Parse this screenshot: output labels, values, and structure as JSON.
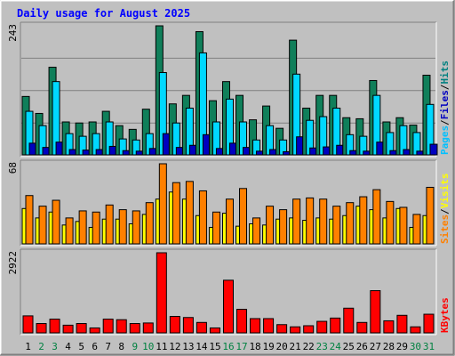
{
  "colors": {
    "frame_bg": "#c0c0c0",
    "panel_bg": "#c0c0c0",
    "title": "#0000ff",
    "hits": "#107f5a",
    "files": "#00d8ff",
    "pages": "#00c0ff",
    "visits": "#ffff00",
    "sites": "#ff8000",
    "kbytes": "#ff0000",
    "weekend_label": "#008040",
    "weekday_label": "#000000",
    "gridline": "#808080"
  },
  "chart_data": {
    "type": "bar",
    "title": "Daily usage for August 2025",
    "categories": [
      "1",
      "2",
      "3",
      "4",
      "5",
      "6",
      "7",
      "8",
      "9",
      "10",
      "11",
      "12",
      "13",
      "14",
      "15",
      "16",
      "17",
      "18",
      "19",
      "20",
      "21",
      "22",
      "23",
      "24",
      "25",
      "26",
      "27",
      "28",
      "29",
      "30",
      "31"
    ],
    "weekend_days": [
      "2",
      "3",
      "9",
      "10",
      "16",
      "17",
      "23",
      "24",
      "30",
      "31"
    ],
    "panels": [
      {
        "name": "hits_files_pages",
        "ymax_label": "243",
        "ylim": [
          0,
          243
        ],
        "gridlines": [
          60,
          121,
          182
        ],
        "legend": [
          {
            "label": "Hits",
            "color": "#008080"
          },
          {
            "label": "Files",
            "color": "#0000c0"
          },
          {
            "label": "Pages",
            "color": "#00c0ff"
          }
        ],
        "series": [
          {
            "name": "Hits",
            "values": [
              110,
              78,
              165,
              62,
              60,
              62,
              82,
              55,
              48,
              86,
              243,
              96,
              112,
              232,
              102,
              138,
              112,
              66,
              92,
              50,
              216,
              88,
              112,
              112,
              70,
              68,
              140,
              62,
              70,
              56,
              150
            ]
          },
          {
            "name": "Files",
            "values": [
              82,
              55,
              138,
              40,
              35,
              40,
              62,
              30,
              28,
              40,
              155,
              60,
              88,
              192,
              62,
              105,
              62,
              28,
              55,
              28,
              152,
              65,
              72,
              88,
              38,
              35,
              112,
              42,
              55,
              42,
              95
            ]
          },
          {
            "name": "Pages",
            "values": [
              22,
              14,
              24,
              10,
              9,
              10,
              16,
              8,
              7,
              12,
              40,
              14,
              18,
              38,
              12,
              22,
              14,
              7,
              10,
              6,
              34,
              13,
              15,
              18,
              8,
              7,
              24,
              8,
              10,
              7,
              20
            ]
          }
        ]
      },
      {
        "name": "visits_sites",
        "ymax_label": "68",
        "ylim": [
          0,
          68
        ],
        "legend": [
          {
            "label": "Visits",
            "color": "#ffff00"
          },
          {
            "label": "Sites",
            "color": "#ff8000"
          }
        ],
        "series": [
          {
            "name": "Visits",
            "values": [
              30,
              22,
              27,
              16,
              19,
              14,
              21,
              21,
              17,
              25,
              38,
              44,
              38,
              24,
              14,
              26,
              15,
              17,
              16,
              21,
              22,
              20,
              22,
              21,
              24,
              32,
              29,
              22,
              30,
              14,
              24
            ]
          },
          {
            "name": "Sites",
            "values": [
              41,
              32,
              37,
              22,
              28,
              27,
              33,
              29,
              28,
              35,
              68,
              52,
              53,
              45,
              27,
              38,
              47,
              22,
              32,
              29,
              38,
              39,
              38,
              32,
              35,
              40,
              46,
              36,
              31,
              25,
              48
            ]
          }
        ]
      },
      {
        "name": "kbytes",
        "ymax_label": "2922",
        "ylim": [
          0,
          2922
        ],
        "legend": [
          {
            "label": "KBytes",
            "color": "#ff0000"
          }
        ],
        "series": [
          {
            "name": "KBytes",
            "values": [
              620,
              340,
              500,
              280,
              340,
              180,
              500,
              480,
              340,
              360,
              2922,
              600,
              560,
              380,
              180,
              1920,
              860,
              520,
              520,
              300,
              220,
              260,
              420,
              540,
              900,
              380,
              1540,
              440,
              640,
              220,
              680
            ]
          }
        ]
      }
    ]
  }
}
